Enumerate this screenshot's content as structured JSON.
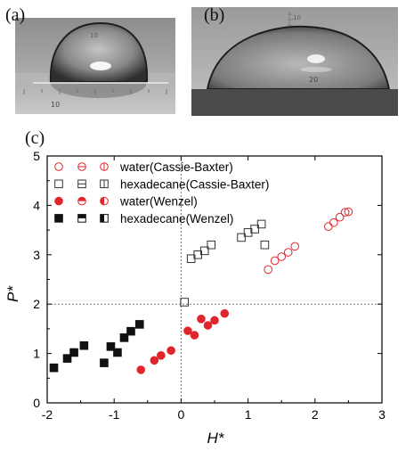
{
  "panels": {
    "a": "(a)",
    "b": "(b)",
    "c": "(c)"
  },
  "photo_a": {
    "scale_label": "10",
    "scale_label_top": "10"
  },
  "photo_b": {
    "scale_label": "20",
    "scale_label_top": "10"
  },
  "chart_data": {
    "type": "scatter",
    "xlabel": "H*",
    "ylabel": "P*",
    "xlim": [
      -2,
      3
    ],
    "ylim": [
      0,
      5
    ],
    "xticks": [
      -2,
      -1,
      0,
      1,
      2,
      3
    ],
    "yticks": [
      0,
      1,
      2,
      3,
      4,
      5
    ],
    "reference_lines": {
      "x": 0,
      "y": 2
    },
    "legend_position": "top-left",
    "series": [
      {
        "name": "water(Cassie-Baxter)",
        "color": "#e0262d",
        "fill": "none",
        "markers": [
          "open-circle",
          "circle-horizontal-line",
          "circle-vertical-line"
        ],
        "points": [
          [
            1.3,
            2.7
          ],
          [
            1.4,
            2.88
          ],
          [
            1.5,
            2.96
          ],
          [
            1.6,
            3.05
          ],
          [
            1.7,
            3.17
          ],
          [
            2.2,
            3.57
          ],
          [
            2.28,
            3.65
          ],
          [
            2.37,
            3.76
          ],
          [
            2.45,
            3.86
          ],
          [
            2.5,
            3.87
          ]
        ]
      },
      {
        "name": "hexadecane(Cassie-Baxter)",
        "color": "#333333",
        "fill": "none",
        "markers": [
          "open-square",
          "square-horizontal-line",
          "square-vertical-line"
        ],
        "points": [
          [
            0.05,
            2.04
          ],
          [
            0.15,
            2.92
          ],
          [
            0.25,
            3.0
          ],
          [
            0.35,
            3.08
          ],
          [
            0.45,
            3.2
          ],
          [
            0.9,
            3.35
          ],
          [
            1.0,
            3.45
          ],
          [
            1.1,
            3.52
          ],
          [
            1.2,
            3.62
          ],
          [
            1.25,
            3.2
          ]
        ]
      },
      {
        "name": "water(Wenzel)",
        "color": "#e0262d",
        "fill": "#e0262d",
        "markers": [
          "filled-circle",
          "circle-top-half",
          "circle-left-half"
        ],
        "points": [
          [
            -0.6,
            0.67
          ],
          [
            -0.4,
            0.86
          ],
          [
            -0.3,
            0.96
          ],
          [
            -0.15,
            1.06
          ],
          [
            0.1,
            1.46
          ],
          [
            0.2,
            1.37
          ],
          [
            0.3,
            1.7
          ],
          [
            0.4,
            1.57
          ],
          [
            0.5,
            1.67
          ],
          [
            0.65,
            1.81
          ]
        ]
      },
      {
        "name": "hexadecane(Wenzel)",
        "color": "#111111",
        "fill": "#111111",
        "markers": [
          "filled-square",
          "square-top-half",
          "square-left-half"
        ],
        "points": [
          [
            -1.9,
            0.71
          ],
          [
            -1.7,
            0.9
          ],
          [
            -1.6,
            1.02
          ],
          [
            -1.45,
            1.16
          ],
          [
            -1.15,
            0.81
          ],
          [
            -1.05,
            1.14
          ],
          [
            -0.95,
            1.02
          ],
          [
            -0.85,
            1.32
          ],
          [
            -0.75,
            1.45
          ],
          [
            -0.62,
            1.59
          ]
        ]
      }
    ]
  }
}
